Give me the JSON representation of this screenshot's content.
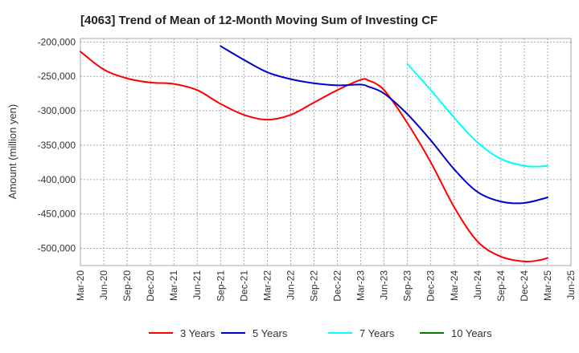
{
  "chart_data": {
    "type": "line",
    "title": "[4063]  Trend of Mean of 12-Month Moving Sum of Investing CF",
    "xlabel": "",
    "ylabel": "Amount (million yen)",
    "ylim": [
      -525000,
      -195000
    ],
    "yticks": [
      -200000,
      -250000,
      -300000,
      -350000,
      -400000,
      -450000,
      -500000
    ],
    "ytick_labels": [
      "-200,000",
      "-250,000",
      "-300,000",
      "-350,000",
      "-400,000",
      "-450,000",
      "-500,000"
    ],
    "x_range_months": [
      0,
      63
    ],
    "xtick_labels": [
      "Mar-20",
      "Jun-20",
      "Sep-20",
      "Dec-20",
      "Mar-21",
      "Jun-21",
      "Sep-21",
      "Dec-21",
      "Mar-22",
      "Jun-22",
      "Sep-22",
      "Dec-22",
      "Mar-23",
      "Jun-23",
      "Sep-23",
      "Dec-23",
      "Mar-24",
      "Jun-24",
      "Sep-24",
      "Dec-24",
      "Mar-25",
      "Jun-25"
    ],
    "grid": true,
    "legend_position": "bottom",
    "series": [
      {
        "name": "3 Years",
        "color": "#ff0000",
        "x": [
          0,
          3,
          6,
          9,
          12,
          15,
          18,
          21,
          24,
          27,
          30,
          33,
          36,
          37,
          39,
          42,
          45,
          48,
          51,
          54,
          57,
          59,
          60
        ],
        "values": [
          -214000,
          -240000,
          -253000,
          -259000,
          -261000,
          -270000,
          -290000,
          -306000,
          -313000,
          -306000,
          -288000,
          -270000,
          -255000,
          -256000,
          -270000,
          -318000,
          -375000,
          -440000,
          -490000,
          -512000,
          -519000,
          -517000,
          -514000
        ]
      },
      {
        "name": "5 Years",
        "color": "#0000cc",
        "x": [
          18,
          21,
          24,
          27,
          30,
          33,
          36,
          37,
          39,
          42,
          45,
          48,
          51,
          54,
          57,
          60
        ],
        "values": [
          -206000,
          -226000,
          -244000,
          -254000,
          -260000,
          -263000,
          -262000,
          -265000,
          -275000,
          -305000,
          -343000,
          -385000,
          -418000,
          -432000,
          -434000,
          -426000
        ]
      },
      {
        "name": "7 Years",
        "color": "#00ffff",
        "x": [
          42,
          45,
          48,
          51,
          54,
          57,
          59,
          60
        ],
        "values": [
          -232000,
          -270000,
          -310000,
          -346000,
          -370000,
          -380000,
          -381000,
          -380000
        ]
      },
      {
        "name": "10 Years",
        "color": "#008000",
        "x": [],
        "values": []
      }
    ]
  }
}
